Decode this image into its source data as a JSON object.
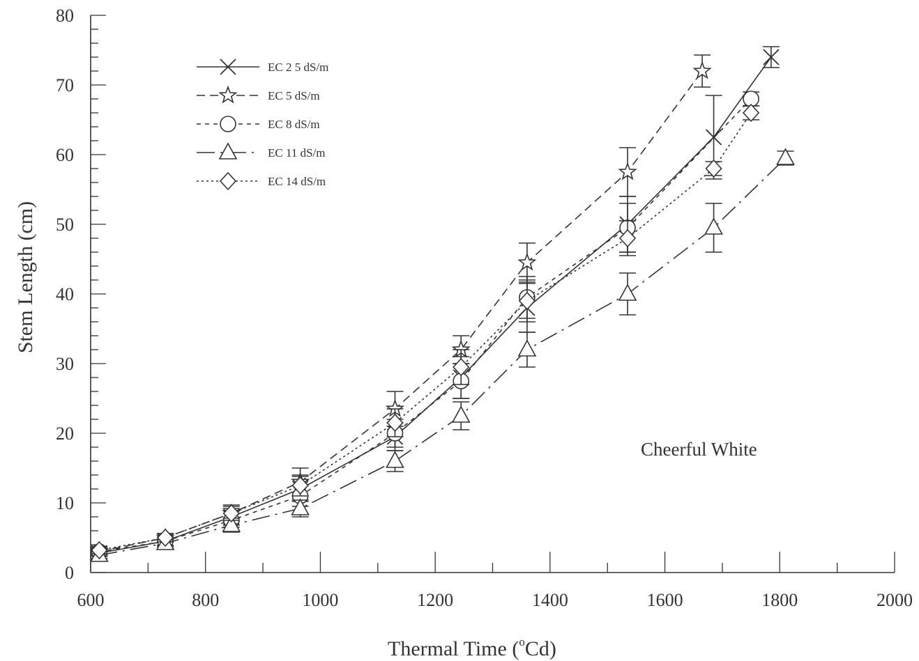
{
  "chart_data": {
    "type": "line",
    "title": "",
    "xlabel": "Thermal Time (",
    "xlabel_unit": "Cd)",
    "xlabel_degree": "o",
    "ylabel": "Stem Length (cm)",
    "xlim": [
      600,
      2000
    ],
    "ylim": [
      0,
      80
    ],
    "x_ticks": [
      600,
      800,
      1000,
      1200,
      1400,
      1600,
      1800,
      2000
    ],
    "y_ticks": [
      0,
      10,
      20,
      30,
      40,
      50,
      60,
      70,
      80
    ],
    "grid": false,
    "legend_position": "top-left",
    "annotation": "Cheerful White",
    "series": [
      {
        "name": "EC 2 5 dS/m",
        "marker": "x",
        "line": "solid",
        "x": [
          615,
          730,
          845,
          965,
          1130,
          1245,
          1360,
          1535,
          1685,
          1785
        ],
        "y": [
          2.8,
          4.5,
          8.0,
          12.0,
          19.5,
          28.0,
          38.0,
          50.0,
          62.5,
          74.0
        ],
        "err": [
          0.5,
          0.6,
          1.2,
          1.8,
          2.0,
          3.0,
          3.5,
          4.0,
          6.0,
          1.5
        ]
      },
      {
        "name": "EC 5 dS/m",
        "marker": "star",
        "line": "dashed",
        "x": [
          615,
          730,
          845,
          965,
          1130,
          1245,
          1360,
          1535,
          1665
        ],
        "y": [
          3.0,
          5.0,
          8.5,
          13.0,
          23.5,
          32.0,
          44.5,
          57.5,
          72.0
        ],
        "err": [
          0.5,
          0.6,
          1.2,
          2.0,
          2.5,
          2.0,
          2.8,
          3.5,
          2.3
        ]
      },
      {
        "name": "EC 8 dS/m",
        "marker": "circle",
        "line": "short-dashed",
        "x": [
          615,
          730,
          845,
          965,
          1130,
          1245,
          1360,
          1535,
          1750
        ],
        "y": [
          3.0,
          4.5,
          7.5,
          11.0,
          20.0,
          27.5,
          39.5,
          49.5,
          68.0
        ],
        "err": [
          0.5,
          0.6,
          1.0,
          1.5,
          2.0,
          2.5,
          3.0,
          3.5,
          1.0
        ]
      },
      {
        "name": "EC 11 dS/m",
        "marker": "triangle",
        "line": "long-dash-dot",
        "x": [
          615,
          730,
          845,
          965,
          1130,
          1245,
          1360,
          1535,
          1685,
          1810
        ],
        "y": [
          2.5,
          4.2,
          6.8,
          9.2,
          16.0,
          22.5,
          32.0,
          40.0,
          49.5,
          59.5
        ],
        "err": [
          0.5,
          0.5,
          1.0,
          1.2,
          1.5,
          2.0,
          2.5,
          3.0,
          3.5,
          1.0
        ]
      },
      {
        "name": "EC 14 dS/m",
        "marker": "diamond",
        "line": "dotted",
        "x": [
          615,
          730,
          845,
          965,
          1130,
          1245,
          1360,
          1535,
          1685,
          1750
        ],
        "y": [
          3.2,
          5.0,
          8.5,
          12.5,
          21.5,
          29.5,
          39.0,
          48.0,
          58.0,
          66.0
        ],
        "err": [
          0.5,
          0.6,
          1.0,
          1.5,
          2.0,
          2.5,
          3.0,
          2.5,
          1.0,
          1.0
        ]
      }
    ]
  }
}
